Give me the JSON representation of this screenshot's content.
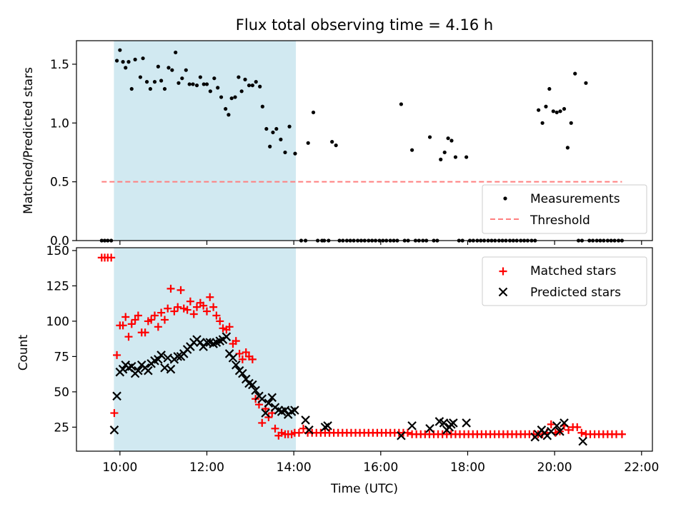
{
  "figure": {
    "title": "Flux total observing time = 4.16 h",
    "xlabel": "Time (UTC)"
  },
  "colors": {
    "highlight": "#add8e6",
    "measurements": "#000000",
    "threshold": "#ff7f7f",
    "matched": "#ff0000",
    "predicted": "#000000"
  },
  "chart_data": [
    {
      "type": "scatter",
      "ylabel": "Matched/Predicted stars",
      "xlim": [
        9.0,
        22.25
      ],
      "ylim": [
        0,
        1.7
      ],
      "yticks": [
        0.0,
        0.5,
        1.0,
        1.5
      ],
      "ytick_labels": [
        "0.0",
        "0.5",
        "1.0",
        "1.5"
      ],
      "shaded_interval": [
        9.87,
        14.04
      ],
      "legend_position": "lower right",
      "series": [
        {
          "name": "Measurements",
          "marker": "point",
          "x": [
            9.58,
            9.65,
            9.72,
            9.8,
            9.93,
            10.0,
            10.07,
            10.13,
            10.2,
            10.27,
            10.35,
            10.47,
            10.53,
            10.62,
            10.7,
            10.8,
            10.88,
            10.95,
            11.03,
            11.12,
            11.2,
            11.28,
            11.35,
            11.43,
            11.52,
            11.6,
            11.68,
            11.77,
            11.85,
            11.93,
            12.0,
            12.08,
            12.17,
            12.25,
            12.33,
            12.43,
            12.5,
            12.57,
            12.65,
            12.73,
            12.8,
            12.88,
            12.97,
            13.05,
            13.13,
            13.22,
            13.28,
            13.37,
            13.45,
            13.52,
            13.6,
            13.7,
            13.8,
            13.9,
            14.03,
            14.17,
            14.27,
            14.33,
            14.45,
            14.55,
            14.65,
            14.7,
            14.8,
            14.88,
            14.97,
            15.05,
            15.13,
            15.22,
            15.3,
            15.38,
            15.47,
            15.55,
            15.63,
            15.72,
            15.8,
            15.88,
            15.97,
            16.05,
            16.13,
            16.22,
            16.3,
            16.38,
            16.47,
            16.55,
            16.63,
            16.72,
            16.8,
            16.88,
            16.97,
            17.05,
            17.13,
            17.22,
            17.3,
            17.38,
            17.47,
            17.55,
            17.63,
            17.72,
            17.8,
            17.88,
            17.97,
            18.05,
            18.13,
            18.22,
            18.3,
            18.38,
            18.47,
            18.55,
            18.63,
            18.72,
            18.8,
            18.88,
            18.97,
            19.05,
            19.13,
            19.22,
            19.3,
            19.38,
            19.47,
            19.55,
            19.63,
            19.72,
            19.8,
            19.88,
            19.97,
            20.05,
            20.13,
            20.22,
            20.3,
            20.38,
            20.47,
            20.55,
            20.63,
            20.72,
            20.8,
            20.88,
            20.97,
            21.05,
            21.13,
            21.22,
            21.3,
            21.38,
            21.47,
            21.55
          ],
          "y": [
            0,
            0,
            0,
            0,
            1.53,
            1.62,
            1.52,
            1.47,
            1.52,
            1.29,
            1.54,
            1.39,
            1.55,
            1.35,
            1.29,
            1.35,
            1.48,
            1.36,
            1.29,
            1.47,
            1.45,
            1.6,
            1.34,
            1.38,
            1.45,
            1.33,
            1.33,
            1.32,
            1.39,
            1.33,
            1.33,
            1.27,
            1.38,
            1.3,
            1.22,
            1.12,
            1.07,
            1.21,
            1.22,
            1.39,
            1.27,
            1.37,
            1.32,
            1.32,
            1.35,
            1.31,
            1.14,
            0.95,
            0.8,
            0.92,
            0.95,
            0.86,
            0.75,
            0.97,
            0.74,
            0,
            0,
            0.83,
            1.09,
            0,
            0,
            0,
            0,
            0.84,
            0.81,
            0,
            0,
            0,
            0,
            0,
            0,
            0,
            0,
            0,
            0,
            0,
            0,
            0,
            0,
            0,
            0,
            0,
            1.16,
            0,
            0,
            0.77,
            0,
            0,
            0,
            0,
            0.88,
            0,
            0,
            0.69,
            0.75,
            0.87,
            0.85,
            0.71,
            0,
            0,
            0.71,
            0,
            0,
            0,
            0,
            0,
            0,
            0,
            0,
            0,
            0,
            0,
            0,
            0,
            0,
            0,
            0,
            0,
            0,
            0,
            1.11,
            1.0,
            1.14,
            1.29,
            1.1,
            1.09,
            1.1,
            1.12,
            0.79,
            1.0,
            1.42,
            0,
            0,
            1.34,
            0,
            0,
            0,
            0,
            0,
            0,
            0,
            0,
            0,
            0
          ]
        },
        {
          "name": "Threshold",
          "marker": "dashed-line",
          "x": [
            9.58,
            21.55
          ],
          "y": [
            0.5,
            0.5
          ]
        }
      ]
    },
    {
      "type": "scatter",
      "ylabel": "Count",
      "xlim": [
        9.0,
        22.25
      ],
      "ylim": [
        8,
        152
      ],
      "yticks": [
        25,
        50,
        75,
        100,
        125,
        150
      ],
      "ytick_labels": [
        "25",
        "50",
        "75",
        "100",
        "125",
        "150"
      ],
      "xticks": [
        10,
        12,
        14,
        16,
        18,
        20,
        22
      ],
      "xtick_labels": [
        "10:00",
        "12:00",
        "14:00",
        "16:00",
        "18:00",
        "20:00",
        "22:00"
      ],
      "shaded_interval": [
        9.87,
        14.04
      ],
      "legend_position": "upper right",
      "series": [
        {
          "name": "Matched stars",
          "marker": "plus",
          "x": [
            9.58,
            9.65,
            9.72,
            9.8,
            9.87,
            9.93,
            10.0,
            10.07,
            10.13,
            10.2,
            10.27,
            10.35,
            10.42,
            10.5,
            10.58,
            10.65,
            10.72,
            10.8,
            10.88,
            10.95,
            11.03,
            11.1,
            11.17,
            11.25,
            11.33,
            11.4,
            11.47,
            11.55,
            11.62,
            11.7,
            11.77,
            11.85,
            11.92,
            12.0,
            12.07,
            12.15,
            12.22,
            12.3,
            12.37,
            12.45,
            12.52,
            12.6,
            12.67,
            12.75,
            12.82,
            12.9,
            12.97,
            13.05,
            13.12,
            13.2,
            13.27,
            13.35,
            13.42,
            13.5,
            13.57,
            13.65,
            13.72,
            13.8,
            13.87,
            13.95,
            14.02,
            14.12,
            14.22,
            14.32,
            14.42,
            14.52,
            14.62,
            14.72,
            14.82,
            14.92,
            15.02,
            15.12,
            15.22,
            15.32,
            15.42,
            15.52,
            15.62,
            15.72,
            15.82,
            15.92,
            16.02,
            16.12,
            16.22,
            16.32,
            16.42,
            16.52,
            16.62,
            16.72,
            16.82,
            16.92,
            17.02,
            17.12,
            17.22,
            17.32,
            17.42,
            17.52,
            17.62,
            17.72,
            17.82,
            17.92,
            18.02,
            18.12,
            18.22,
            18.32,
            18.42,
            18.52,
            18.62,
            18.72,
            18.82,
            18.92,
            19.02,
            19.12,
            19.22,
            19.32,
            19.42,
            19.52,
            19.62,
            19.72,
            19.82,
            19.92,
            20.02,
            20.12,
            20.22,
            20.32,
            20.42,
            20.52,
            20.62,
            20.72,
            20.82,
            20.92,
            21.02,
            21.12,
            21.22,
            21.32,
            21.42,
            21.55
          ],
          "y": [
            145,
            145,
            145,
            145,
            35,
            76,
            97,
            97,
            103,
            89,
            98,
            101,
            104,
            92,
            92,
            100,
            101,
            104,
            96,
            106,
            101,
            109,
            123,
            107,
            110,
            122,
            109,
            108,
            114,
            105,
            110,
            113,
            111,
            107,
            117,
            110,
            104,
            100,
            95,
            94,
            96,
            84,
            86,
            77,
            73,
            78,
            75,
            73,
            45,
            41,
            28,
            38,
            32,
            35,
            24,
            19,
            21,
            20,
            20,
            20,
            21,
            21,
            24,
            21,
            21,
            21,
            21,
            21,
            21,
            21,
            21,
            21,
            21,
            21,
            21,
            21,
            21,
            21,
            21,
            21,
            21,
            21,
            21,
            21,
            21,
            21,
            21,
            20,
            20,
            20,
            20,
            20,
            20,
            20,
            20,
            20,
            20,
            20,
            20,
            20,
            20,
            20,
            20,
            20,
            20,
            20,
            20,
            20,
            20,
            20,
            20,
            20,
            20,
            20,
            20,
            20,
            20,
            20,
            21,
            27,
            21,
            22,
            26,
            23,
            25,
            25,
            21,
            20,
            20,
            20,
            20,
            20,
            20,
            20,
            20,
            20
          ]
        },
        {
          "name": "Predicted stars",
          "marker": "x",
          "x": [
            9.87,
            9.93,
            10.0,
            10.07,
            10.13,
            10.2,
            10.27,
            10.35,
            10.42,
            10.5,
            10.58,
            10.65,
            10.72,
            10.8,
            10.88,
            10.95,
            11.03,
            11.1,
            11.17,
            11.25,
            11.33,
            11.4,
            11.47,
            11.55,
            11.62,
            11.7,
            11.77,
            11.85,
            11.92,
            12.0,
            12.07,
            12.15,
            12.22,
            12.3,
            12.37,
            12.45,
            12.52,
            12.6,
            12.67,
            12.75,
            12.82,
            12.9,
            12.97,
            13.05,
            13.12,
            13.2,
            13.27,
            13.35,
            13.42,
            13.5,
            13.57,
            13.65,
            13.72,
            13.8,
            13.87,
            13.95,
            14.02,
            14.27,
            14.35,
            14.72,
            14.78,
            16.47,
            16.72,
            17.13,
            17.35,
            17.45,
            17.52,
            17.58,
            17.62,
            17.67,
            17.97,
            19.55,
            19.62,
            19.7,
            19.77,
            19.83,
            19.92,
            20.05,
            20.12,
            20.22,
            20.65
          ],
          "y": [
            23,
            47,
            64,
            66,
            69,
            67,
            68,
            63,
            65,
            69,
            67,
            65,
            70,
            72,
            73,
            76,
            67,
            74,
            66,
            73,
            75,
            75,
            77,
            80,
            82,
            85,
            87,
            85,
            82,
            85,
            85,
            84,
            85,
            86,
            87,
            89,
            77,
            74,
            69,
            65,
            63,
            59,
            56,
            55,
            51,
            47,
            45,
            35,
            42,
            46,
            39,
            37,
            36,
            37,
            34,
            36,
            37,
            30,
            23,
            25,
            26,
            19,
            26,
            24,
            29,
            28,
            23,
            25,
            27,
            28,
            28,
            18,
            20,
            23,
            21,
            19,
            22,
            26,
            22,
            28,
            15
          ]
        }
      ]
    }
  ]
}
